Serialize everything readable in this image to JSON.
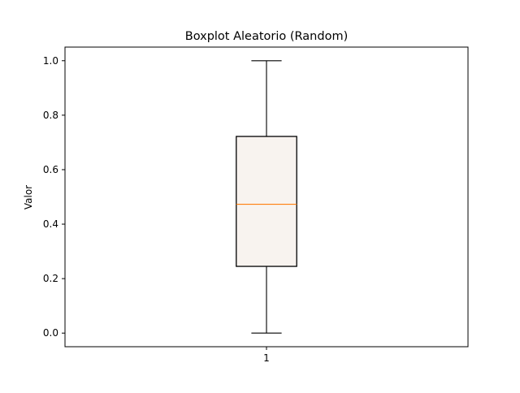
{
  "chart_data": {
    "type": "boxplot",
    "title": "Boxplot Aleatorio (Random)",
    "xlabel": "",
    "ylabel": "Valor",
    "categories": [
      "1"
    ],
    "boxes": [
      {
        "category": "1",
        "whisker_low": 0.0,
        "q1": 0.245,
        "median": 0.473,
        "q3": 0.722,
        "whisker_high": 1.0
      }
    ],
    "ylim": [
      -0.05,
      1.05
    ],
    "yticks": [
      0.0,
      0.2,
      0.4,
      0.6,
      0.8,
      1.0
    ],
    "ytick_labels": [
      "0.0",
      "0.2",
      "0.4",
      "0.6",
      "0.8",
      "1.0"
    ],
    "grid": false,
    "colors": {
      "box_fill": "#f8f3ef",
      "box_edge": "#000000",
      "median": "#ff7f0e",
      "whisker": "#000000"
    }
  }
}
